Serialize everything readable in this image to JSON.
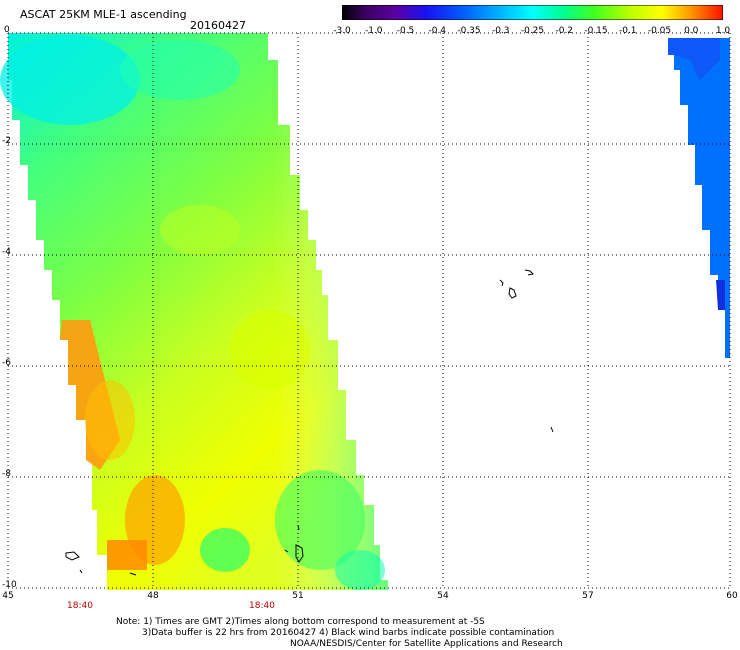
{
  "header": {
    "title": "ASCAT 25KM MLE-1 ascending",
    "date": "20160427"
  },
  "colorbar": {
    "labels": [
      "-3.0",
      "-1.0",
      "-0.5",
      "-0.4",
      "-0.35",
      "-0.3",
      "-0.25",
      "-0.2",
      "-0.15",
      "-0.1",
      "-0.05",
      "0.0",
      "1.0"
    ],
    "colors": [
      "#1a0a1a",
      "#5a007a",
      "#1a00e0",
      "#0050ff",
      "#00a8ff",
      "#00ffff",
      "#00ffb0",
      "#30ff40",
      "#a0ff00",
      "#ffff00",
      "#ffb000",
      "#ff5000",
      "#ff0000"
    ]
  },
  "map": {
    "lat_labels": [
      "0",
      "-2",
      "-4",
      "-6",
      "-8",
      "-10"
    ],
    "lon_labels": [
      "45",
      "48",
      "51",
      "54",
      "57",
      "60"
    ],
    "time_labels": [
      "18:40",
      "18:40"
    ]
  },
  "footer": {
    "line1": "Note: 1) Times are GMT 2)Times along bottom correspond to measurement at -5S",
    "line2": "3)Data buffer is 22 hrs from 20160427 4) Black wind barbs indicate possible contamination",
    "line3": "NOAA/NESDIS/Center for Satellite Applications and Research"
  }
}
